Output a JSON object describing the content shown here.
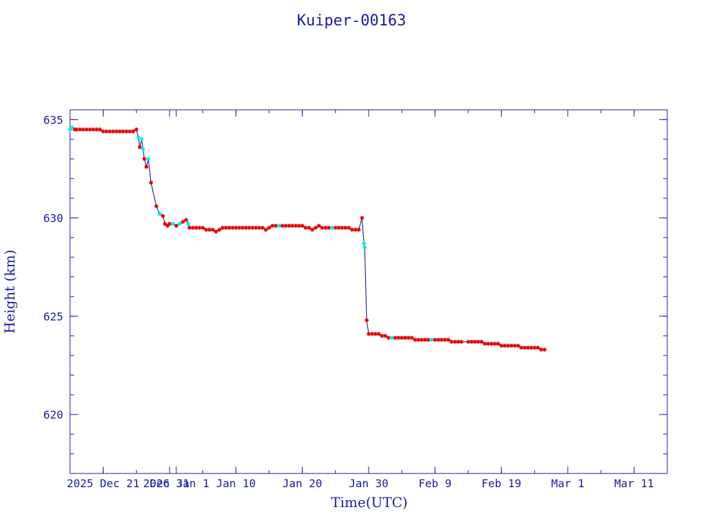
{
  "chart_data": {
    "type": "line",
    "title": "Kuiper-00163",
    "xlabel": "Time(UTC)",
    "ylabel": "Height (km)",
    "xlim": [
      "2025-12-16",
      "2026-03-16"
    ],
    "ylim": [
      617,
      635.5
    ],
    "yticks": [
      620,
      625,
      630,
      635
    ],
    "xticks": [
      {
        "date": "2025-12-21",
        "label": "2025 Dec 21"
      },
      {
        "date": "2025-12-31",
        "label": "Dec 31"
      },
      {
        "date": "2026-01-01",
        "label": "2026 Jan 1"
      },
      {
        "date": "2026-01-10",
        "label": "Jan 10"
      },
      {
        "date": "2026-01-20",
        "label": "Jan 20"
      },
      {
        "date": "2026-01-30",
        "label": "Jan 30"
      },
      {
        "date": "2026-02-09",
        "label": "Feb 9"
      },
      {
        "date": "2026-02-19",
        "label": "Feb 19"
      },
      {
        "date": "2026-03-01",
        "label": "Mar 1"
      },
      {
        "date": "2026-03-11",
        "label": "Mar 11"
      }
    ],
    "colors": {
      "axis": "#1a1aa0",
      "line": "#000080",
      "marker_primary": "#e00000",
      "marker_secondary": "#00e5ee"
    },
    "series": [
      {
        "marker": "star",
        "points": [
          {
            "x": "2025-12-16",
            "y": 634.5,
            "c": "cyan"
          },
          {
            "x": "2025-12-16.3",
            "y": 634.6,
            "c": "cyan"
          },
          {
            "x": "2025-12-16.7",
            "y": 634.5
          },
          {
            "x": "2025-12-17",
            "y": 634.5
          },
          {
            "x": "2025-12-17.5",
            "y": 634.5
          },
          {
            "x": "2025-12-18",
            "y": 634.5
          },
          {
            "x": "2025-12-18.5",
            "y": 634.5
          },
          {
            "x": "2025-12-19",
            "y": 634.5
          },
          {
            "x": "2025-12-19.5",
            "y": 634.5
          },
          {
            "x": "2025-12-20",
            "y": 634.5
          },
          {
            "x": "2025-12-20.5",
            "y": 634.5
          },
          {
            "x": "2025-12-21",
            "y": 634.4
          },
          {
            "x": "2025-12-21.5",
            "y": 634.4
          },
          {
            "x": "2025-12-22",
            "y": 634.4
          },
          {
            "x": "2025-12-22.5",
            "y": 634.4
          },
          {
            "x": "2025-12-23",
            "y": 634.4
          },
          {
            "x": "2025-12-23.5",
            "y": 634.4
          },
          {
            "x": "2025-12-24",
            "y": 634.4
          },
          {
            "x": "2025-12-24.5",
            "y": 634.4
          },
          {
            "x": "2025-12-25",
            "y": 634.4
          },
          {
            "x": "2025-12-25.5",
            "y": 634.4
          },
          {
            "x": "2025-12-26",
            "y": 634.5
          },
          {
            "x": "2025-12-26.3",
            "y": 634.1,
            "c": "cyan"
          },
          {
            "x": "2025-12-26.5",
            "y": 633.6
          },
          {
            "x": "2025-12-26.8",
            "y": 634.0,
            "c": "cyan"
          },
          {
            "x": "2025-12-27",
            "y": 633.5,
            "c": "cyan"
          },
          {
            "x": "2025-12-27.2",
            "y": 633.0
          },
          {
            "x": "2025-12-27.5",
            "y": 632.6
          },
          {
            "x": "2025-12-27.8",
            "y": 633.0,
            "c": "cyan"
          },
          {
            "x": "2025-12-28.2",
            "y": 631.8
          },
          {
            "x": "2025-12-29",
            "y": 630.6
          },
          {
            "x": "2025-12-29.5",
            "y": 630.2,
            "c": "cyan"
          },
          {
            "x": "2025-12-30",
            "y": 630.1
          },
          {
            "x": "2025-12-30.3",
            "y": 629.7
          },
          {
            "x": "2025-12-30.7",
            "y": 629.6
          },
          {
            "x": "2025-12-31",
            "y": 629.7
          },
          {
            "x": "2025-12-31.5",
            "y": 629.7,
            "c": "cyan"
          },
          {
            "x": "2026-01-01",
            "y": 629.6
          },
          {
            "x": "2026-01-01.5",
            "y": 629.7,
            "c": "cyan"
          },
          {
            "x": "2026-01-02",
            "y": 629.8
          },
          {
            "x": "2026-01-02.5",
            "y": 629.9
          },
          {
            "x": "2026-01-02.8",
            "y": 629.7,
            "c": "cyan"
          },
          {
            "x": "2026-01-03",
            "y": 629.5
          },
          {
            "x": "2026-01-03.5",
            "y": 629.5
          },
          {
            "x": "2026-01-04",
            "y": 629.5
          },
          {
            "x": "2026-01-04.5",
            "y": 629.5
          },
          {
            "x": "2026-01-05",
            "y": 629.5
          },
          {
            "x": "2026-01-05.5",
            "y": 629.4
          },
          {
            "x": "2026-01-06",
            "y": 629.4
          },
          {
            "x": "2026-01-06.5",
            "y": 629.4
          },
          {
            "x": "2026-01-07",
            "y": 629.3
          },
          {
            "x": "2026-01-07.5",
            "y": 629.4
          },
          {
            "x": "2026-01-08",
            "y": 629.5
          },
          {
            "x": "2026-01-08.5",
            "y": 629.5
          },
          {
            "x": "2026-01-09",
            "y": 629.5
          },
          {
            "x": "2026-01-09.5",
            "y": 629.5
          },
          {
            "x": "2026-01-10",
            "y": 629.5
          },
          {
            "x": "2026-01-10.5",
            "y": 629.5
          },
          {
            "x": "2026-01-11",
            "y": 629.5
          },
          {
            "x": "2026-01-11.5",
            "y": 629.5
          },
          {
            "x": "2026-01-12",
            "y": 629.5
          },
          {
            "x": "2026-01-12.5",
            "y": 629.5
          },
          {
            "x": "2026-01-13",
            "y": 629.5
          },
          {
            "x": "2026-01-13.5",
            "y": 629.5
          },
          {
            "x": "2026-01-14",
            "y": 629.5
          },
          {
            "x": "2026-01-14.5",
            "y": 629.4
          },
          {
            "x": "2026-01-15",
            "y": 629.5
          },
          {
            "x": "2026-01-15.5",
            "y": 629.6
          },
          {
            "x": "2026-01-16",
            "y": 629.6
          },
          {
            "x": "2026-01-16.5",
            "y": 629.6,
            "c": "cyan"
          },
          {
            "x": "2026-01-17",
            "y": 629.6
          },
          {
            "x": "2026-01-17.5",
            "y": 629.6
          },
          {
            "x": "2026-01-18",
            "y": 629.6
          },
          {
            "x": "2026-01-18.5",
            "y": 629.6
          },
          {
            "x": "2026-01-19",
            "y": 629.6
          },
          {
            "x": "2026-01-19.5",
            "y": 629.6
          },
          {
            "x": "2026-01-20",
            "y": 629.6
          },
          {
            "x": "2026-01-20.5",
            "y": 629.5
          },
          {
            "x": "2026-01-21",
            "y": 629.5
          },
          {
            "x": "2026-01-21.5",
            "y": 629.4
          },
          {
            "x": "2026-01-22",
            "y": 629.5
          },
          {
            "x": "2026-01-22.5",
            "y": 629.6
          },
          {
            "x": "2026-01-23",
            "y": 629.5
          },
          {
            "x": "2026-01-23.5",
            "y": 629.5
          },
          {
            "x": "2026-01-24",
            "y": 629.5
          },
          {
            "x": "2026-01-24.5",
            "y": 629.5,
            "c": "cyan"
          },
          {
            "x": "2026-01-25",
            "y": 629.5
          },
          {
            "x": "2026-01-25.5",
            "y": 629.5
          },
          {
            "x": "2026-01-26",
            "y": 629.5
          },
          {
            "x": "2026-01-26.5",
            "y": 629.5
          },
          {
            "x": "2026-01-27",
            "y": 629.5
          },
          {
            "x": "2026-01-27.5",
            "y": 629.4
          },
          {
            "x": "2026-01-28",
            "y": 629.4
          },
          {
            "x": "2026-01-28.5",
            "y": 629.4
          },
          {
            "x": "2026-01-29",
            "y": 630.0
          },
          {
            "x": "2026-01-29.3",
            "y": 628.7,
            "c": "cyan"
          },
          {
            "x": "2026-01-29.4",
            "y": 628.5,
            "c": "cyan"
          },
          {
            "x": "2026-01-29.7",
            "y": 624.8
          },
          {
            "x": "2026-01-30",
            "y": 624.1
          },
          {
            "x": "2026-01-30.5",
            "y": 624.1
          },
          {
            "x": "2026-01-31",
            "y": 624.1
          },
          {
            "x": "2026-01-31.5",
            "y": 624.1
          },
          {
            "x": "2026-02-01",
            "y": 624.0
          },
          {
            "x": "2026-02-01.5",
            "y": 624.0
          },
          {
            "x": "2026-02-02",
            "y": 623.9
          },
          {
            "x": "2026-02-02.5",
            "y": 623.9,
            "c": "cyan"
          },
          {
            "x": "2026-02-03",
            "y": 623.9
          },
          {
            "x": "2026-02-03.5",
            "y": 623.9
          },
          {
            "x": "2026-02-04",
            "y": 623.9
          },
          {
            "x": "2026-02-04.5",
            "y": 623.9
          },
          {
            "x": "2026-02-05",
            "y": 623.9
          },
          {
            "x": "2026-02-05.5",
            "y": 623.9
          },
          {
            "x": "2026-02-06",
            "y": 623.8
          },
          {
            "x": "2026-02-06.5",
            "y": 623.8
          },
          {
            "x": "2026-02-07",
            "y": 623.8
          },
          {
            "x": "2026-02-07.5",
            "y": 623.8
          },
          {
            "x": "2026-02-08",
            "y": 623.8
          },
          {
            "x": "2026-02-08.5",
            "y": 623.8,
            "c": "cyan"
          },
          {
            "x": "2026-02-09",
            "y": 623.8
          },
          {
            "x": "2026-02-09.5",
            "y": 623.8
          },
          {
            "x": "2026-02-10",
            "y": 623.8
          },
          {
            "x": "2026-02-10.5",
            "y": 623.8
          },
          {
            "x": "2026-02-11",
            "y": 623.8
          },
          {
            "x": "2026-02-11.5",
            "y": 623.7
          },
          {
            "x": "2026-02-12",
            "y": 623.7
          },
          {
            "x": "2026-02-12.5",
            "y": 623.7
          },
          {
            "x": "2026-02-13",
            "y": 623.7
          },
          {
            "x": "2026-02-14",
            "y": 623.7
          },
          {
            "x": "2026-02-14.5",
            "y": 623.7
          },
          {
            "x": "2026-02-15",
            "y": 623.7
          },
          {
            "x": "2026-02-15.5",
            "y": 623.7
          },
          {
            "x": "2026-02-16",
            "y": 623.7
          },
          {
            "x": "2026-02-16.5",
            "y": 623.6
          },
          {
            "x": "2026-02-17",
            "y": 623.6
          },
          {
            "x": "2026-02-17.5",
            "y": 623.6
          },
          {
            "x": "2026-02-18",
            "y": 623.6
          },
          {
            "x": "2026-02-18.5",
            "y": 623.6
          },
          {
            "x": "2026-02-19",
            "y": 623.5
          },
          {
            "x": "2026-02-19.5",
            "y": 623.5
          },
          {
            "x": "2026-02-20",
            "y": 623.5
          },
          {
            "x": "2026-02-20.5",
            "y": 623.5
          },
          {
            "x": "2026-02-21",
            "y": 623.5
          },
          {
            "x": "2026-02-21.5",
            "y": 623.5
          },
          {
            "x": "2026-02-22",
            "y": 623.4
          },
          {
            "x": "2026-02-22.5",
            "y": 623.4
          },
          {
            "x": "2026-02-23",
            "y": 623.4
          },
          {
            "x": "2026-02-23.5",
            "y": 623.4
          },
          {
            "x": "2026-02-24",
            "y": 623.4
          },
          {
            "x": "2026-02-24.5",
            "y": 623.4
          },
          {
            "x": "2026-02-25",
            "y": 623.3
          },
          {
            "x": "2026-02-25.5",
            "y": 623.3
          }
        ]
      }
    ]
  }
}
